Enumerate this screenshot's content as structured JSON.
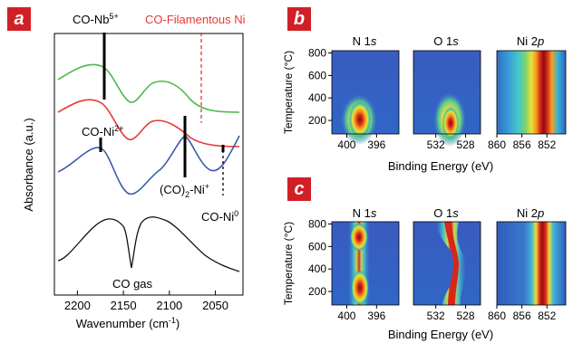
{
  "panel_a": {
    "label": "a",
    "xlabel": "Wavenumber (cm",
    "xlabel_sup": "-1",
    "xlabel_end": ")",
    "ylabel": "Absorbance (a.u.)",
    "ticks": [
      {
        "value": 2200,
        "label": "2200"
      },
      {
        "value": 2150,
        "label": "2150"
      },
      {
        "value": 2100,
        "label": "2100"
      },
      {
        "value": 2050,
        "label": "2050"
      }
    ],
    "annotations": {
      "nb": {
        "text": "CO-Nb",
        "sup": "5+",
        "wavenumber": 2180
      },
      "filamentous": {
        "text": "CO-Filamentous Ni",
        "wavenumber": 2068,
        "color": "#e53935"
      },
      "ni2": {
        "text": "CO-Ni",
        "sup": "2+",
        "wavenumber": 2185
      },
      "ni1": {
        "text": "(CO)",
        "sub": "2",
        "text2": "-Ni",
        "sup": "+",
        "wavenumber": 2090
      },
      "ni0": {
        "text": "CO-Ni",
        "sup": "0",
        "wavenumber": 2045
      },
      "gas": {
        "text": "CO gas"
      }
    },
    "colors": {
      "green": "#4cb848",
      "red": "#e53935",
      "blue": "#3a5ba9",
      "black": "#111111"
    }
  },
  "panel_b": {
    "label": "b",
    "ylabel": "Temperature (°C)",
    "xlabel": "Binding Energy (eV)",
    "yticks": [
      "800",
      "600",
      "400",
      "200"
    ],
    "subplots": [
      {
        "title": "N 1",
        "title_italic": "s",
        "ticks": [
          "400",
          "396"
        ]
      },
      {
        "title": "O 1",
        "title_italic": "s",
        "ticks": [
          "532",
          "528"
        ]
      },
      {
        "title": "Ni 2",
        "title_italic": "p",
        "ticks": [
          "860",
          "856",
          "852"
        ]
      }
    ]
  },
  "panel_c": {
    "label": "c",
    "ylabel": "Temperature (°C)",
    "xlabel": "Binding Energy (eV)",
    "yticks": [
      "800",
      "600",
      "400",
      "200"
    ],
    "subplots": [
      {
        "title": "N 1",
        "title_italic": "s",
        "ticks": [
          "400",
          "396"
        ]
      },
      {
        "title": "O 1",
        "title_italic": "s",
        "ticks": [
          "532",
          "528"
        ]
      },
      {
        "title": "Ni 2",
        "title_italic": "p",
        "ticks": [
          "860",
          "856",
          "852"
        ]
      }
    ]
  }
}
